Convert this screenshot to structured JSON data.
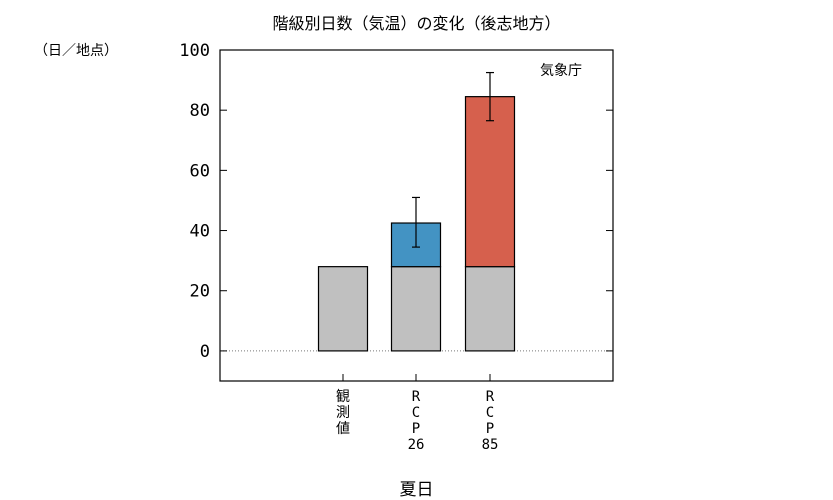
{
  "chart_data": {
    "type": "bar",
    "title": "階級別日数（気温）の変化（後志地方）",
    "ylabel": "（日／地点）",
    "source": "気象庁",
    "group_label": "夏日",
    "ylim": [
      -10,
      100
    ],
    "yticks": [
      0,
      20,
      40,
      60,
      80,
      100
    ],
    "grid": false,
    "categories": [
      {
        "label": [
          "観",
          "測",
          "値"
        ]
      },
      {
        "label": [
          "R",
          "C",
          "P",
          "26"
        ]
      },
      {
        "label": [
          "R",
          "C",
          "P",
          "85"
        ]
      }
    ],
    "series": [
      {
        "name": "",
        "values": [
          28,
          28,
          28
        ],
        "color": "#c0c0c0"
      },
      {
        "name": "",
        "values": [
          0,
          14.5,
          56.5
        ],
        "color_by_category": [
          "#c0c0c0",
          "#4393c3",
          "#d6604d"
        ]
      }
    ],
    "error_bars": [
      null,
      {
        "center": 42.5,
        "low": 34.5,
        "high": 51
      },
      {
        "center": 84.5,
        "low": 76.5,
        "high": 92.5
      }
    ]
  }
}
